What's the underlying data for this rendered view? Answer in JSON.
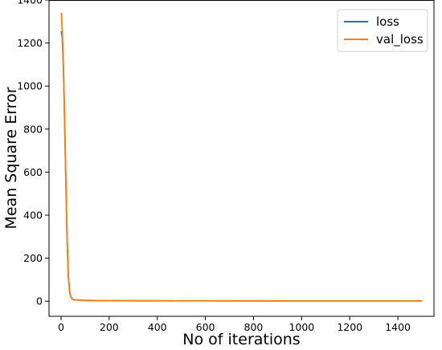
{
  "chart_data": {
    "type": "line",
    "title": "",
    "xlabel": "No of iterations",
    "ylabel": "Mean Square Error",
    "xlim": [
      -50,
      1550
    ],
    "ylim": [
      -70,
      1400
    ],
    "xticks": [
      0,
      200,
      400,
      600,
      800,
      1000,
      1200,
      1400
    ],
    "yticks": [
      0,
      200,
      400,
      600,
      800,
      1000,
      1200,
      1400
    ],
    "grid": false,
    "legend_position": "top-right",
    "series": [
      {
        "name": "loss",
        "color": "#1f77b4",
        "x": [
          1,
          5,
          10,
          15,
          20,
          25,
          30,
          35,
          40,
          45,
          50,
          60,
          80,
          100,
          150,
          200,
          300,
          500,
          800,
          1000,
          1200,
          1500
        ],
        "y": [
          1255,
          1225,
          1080,
          830,
          560,
          300,
          120,
          50,
          22,
          12,
          8,
          6,
          5,
          4,
          3,
          2.5,
          2,
          1.8,
          1.6,
          1.5,
          1.4,
          1.3
        ]
      },
      {
        "name": "val_loss",
        "color": "#ff7f0e",
        "x": [
          1,
          5,
          10,
          15,
          20,
          25,
          30,
          35,
          40,
          45,
          50,
          60,
          80,
          100,
          150,
          200,
          300,
          500,
          800,
          1000,
          1200,
          1500
        ],
        "y": [
          1340,
          1260,
          1090,
          830,
          560,
          300,
          120,
          50,
          22,
          12,
          8,
          6,
          5,
          4,
          3,
          2.5,
          2,
          1.8,
          1.6,
          1.5,
          1.4,
          1.3
        ]
      }
    ]
  }
}
